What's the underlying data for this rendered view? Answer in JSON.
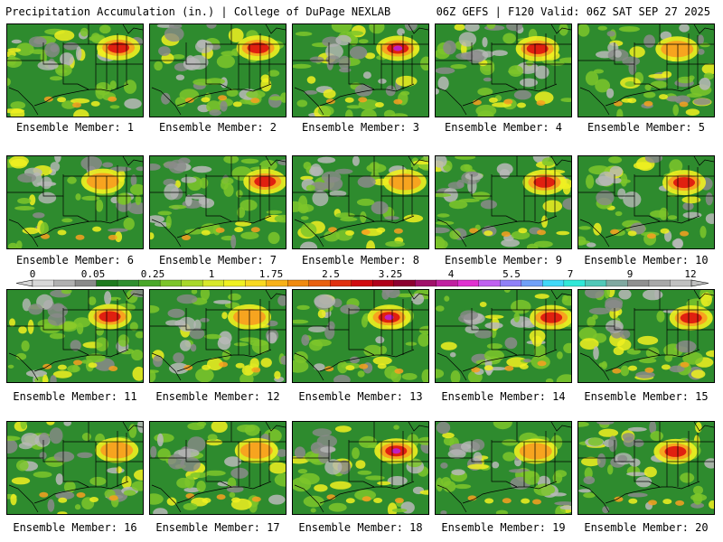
{
  "header": {
    "left": "Precipitation Accumulation (in.) | College of DuPage NEXLAB",
    "right": "06Z GEFS | F120 Valid: 06Z SAT SEP 27 2025"
  },
  "colorbar": {
    "tick_labels": [
      "0",
      "0.05",
      "0.25",
      "1",
      "1.75",
      "2.5",
      "3.25",
      "4",
      "5.5",
      "7",
      "9",
      "12"
    ],
    "colors": [
      "#d8d8d8",
      "#b0b0b0",
      "#8a8a8a",
      "#1e7a1e",
      "#2f8f2f",
      "#4aa82a",
      "#7cc52a",
      "#a8d82a",
      "#d8e82a",
      "#f0f020",
      "#f8d820",
      "#f8b018",
      "#f08a10",
      "#e86010",
      "#e03010",
      "#d00a10",
      "#b0001a",
      "#8c0030",
      "#a0106a",
      "#c020a0",
      "#e030d0",
      "#c060f0",
      "#9080f8",
      "#70a0f8",
      "#40d8f8",
      "#30e8d8",
      "#50c8b8",
      "#80a8a0",
      "#909090",
      "#a8a8a8",
      "#c0c0c0"
    ],
    "map_colors": {
      "ocean": "#1f7a1f",
      "trace": "#b8b8b8",
      "dry": "#8a8a8a",
      "green": "#2e8b2e",
      "light_green": "#7cc52a",
      "yellow": "#f0f020",
      "orange": "#f8a020",
      "red": "#e02010",
      "magenta": "#c020c0",
      "purple": "#8a30e0"
    }
  },
  "members": [
    {
      "label": "Ensemble Member: 1",
      "intensity": 3
    },
    {
      "label": "Ensemble Member: 2",
      "intensity": 3
    },
    {
      "label": "Ensemble Member: 3",
      "intensity": 4
    },
    {
      "label": "Ensemble Member: 4",
      "intensity": 3
    },
    {
      "label": "Ensemble Member: 5",
      "intensity": 2
    },
    {
      "label": "Ensemble Member: 6",
      "intensity": 2
    },
    {
      "label": "Ensemble Member: 7",
      "intensity": 3
    },
    {
      "label": "Ensemble Member: 8",
      "intensity": 2
    },
    {
      "label": "Ensemble Member: 9",
      "intensity": 3
    },
    {
      "label": "Ensemble Member: 10",
      "intensity": 3
    },
    {
      "label": "Ensemble Member: 11",
      "intensity": 3
    },
    {
      "label": "Ensemble Member: 12",
      "intensity": 2
    },
    {
      "label": "Ensemble Member: 13",
      "intensity": 4
    },
    {
      "label": "Ensemble Member: 14",
      "intensity": 3
    },
    {
      "label": "Ensemble Member: 15",
      "intensity": 3
    },
    {
      "label": "Ensemble Member: 16",
      "intensity": 2
    },
    {
      "label": "Ensemble Member: 17",
      "intensity": 2
    },
    {
      "label": "Ensemble Member: 18",
      "intensity": 4
    },
    {
      "label": "Ensemble Member: 19",
      "intensity": 2
    },
    {
      "label": "Ensemble Member: 20",
      "intensity": 3
    }
  ]
}
